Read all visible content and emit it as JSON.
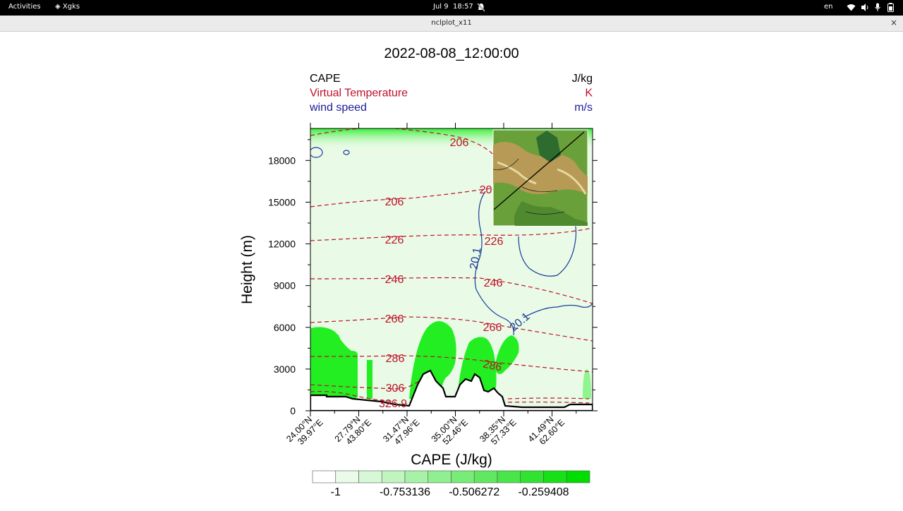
{
  "topbar": {
    "activities": "Activities",
    "app_name": "Xgks",
    "date": "Jul 9",
    "time": "18:57",
    "language": "en",
    "icons": [
      "bell-off-icon",
      "wifi-icon",
      "volume-icon",
      "microphone-icon",
      "battery-icon"
    ]
  },
  "window": {
    "title": "nclplot_x11",
    "close_label": "×"
  },
  "plot": {
    "title": "2022-08-08_12:00:00",
    "legend": [
      {
        "name": "CAPE",
        "unit": "J/kg",
        "color": "#000000"
      },
      {
        "name": "Virtual Temperature",
        "unit": "K",
        "color": "#c0102a"
      },
      {
        "name": "wind speed",
        "unit": "m/s",
        "color": "#1a1a9a"
      }
    ],
    "ylabel": "Height (m)",
    "yticks": [
      "0",
      "3000",
      "6000",
      "9000",
      "12000",
      "15000",
      "18000"
    ],
    "xticks": [
      {
        "lat": "24.00°N",
        "lon": "39.97°E"
      },
      {
        "lat": "27.79°N",
        "lon": "43.80°E"
      },
      {
        "lat": "31.47°N",
        "lon": "47.96°E"
      },
      {
        "lat": "35.00°N",
        "lon": "52.46°E"
      },
      {
        "lat": "38.35°N",
        "lon": "57.33°E"
      },
      {
        "lat": "41.49°N",
        "lon": "62.60°E"
      }
    ],
    "xlabel": "CAPE (J/kg)",
    "temp_labels": [
      "206",
      "206",
      "206",
      "226",
      "226",
      "246",
      "246",
      "266",
      "266",
      "286",
      "286",
      "306",
      "326.9"
    ],
    "wind_labels": [
      "20.1",
      "20.1"
    ],
    "colorbar_labels": [
      "-1",
      "-0.753136",
      "-0.506272",
      "-0.259408"
    ],
    "colorbar_colors": [
      "#ffffff",
      "#eafbea",
      "#d6f8d6",
      "#c0f5c0",
      "#a8f2a8",
      "#90ef90",
      "#78ec78",
      "#60e960",
      "#48e648",
      "#30e330",
      "#18e018",
      "#00dd00"
    ],
    "colors": {
      "background_fill": "#e9fbe6",
      "cape_fill": "#22ee22",
      "temperature": "#c0102a",
      "wind": "#1a3a9a",
      "terrain": "#000000"
    }
  }
}
